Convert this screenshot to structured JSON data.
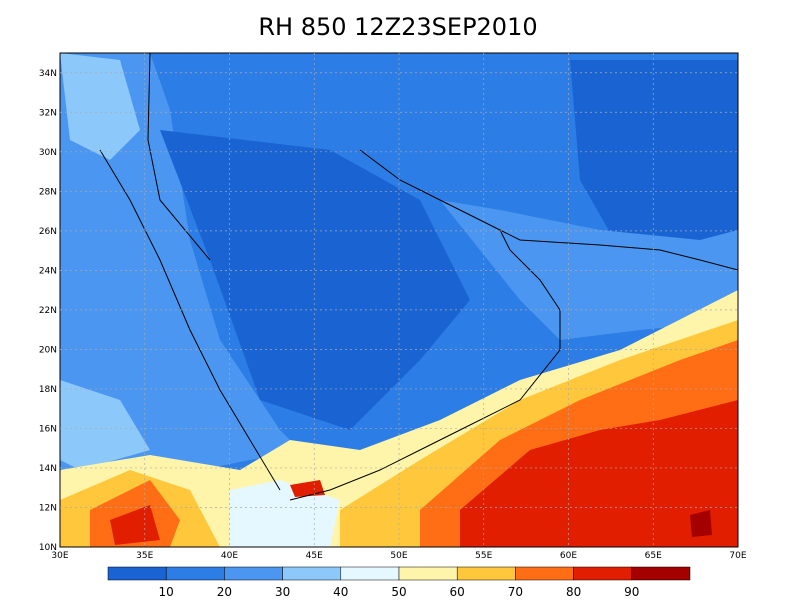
{
  "title": "RH 850 12Z23SEP2010",
  "map": {
    "x_labels": [
      "30E",
      "35E",
      "40E",
      "45E",
      "50E",
      "55E",
      "60E",
      "65E",
      "70E"
    ],
    "y_labels": [
      "10N",
      "12N",
      "14N",
      "16N",
      "18N",
      "20N",
      "22N",
      "24N",
      "26N",
      "28N",
      "30N",
      "32N",
      "34N"
    ]
  },
  "colorbar": {
    "labels": [
      10,
      20,
      30,
      40,
      50,
      60,
      70,
      80,
      90
    ],
    "colors": [
      "#1964d2",
      "#2d7de6",
      "#4b96f0",
      "#8cc8fa",
      "#e6f8ff",
      "#fff5aa",
      "#ffc83c",
      "#ff6e14",
      "#e11e00",
      "#a50000"
    ]
  }
}
